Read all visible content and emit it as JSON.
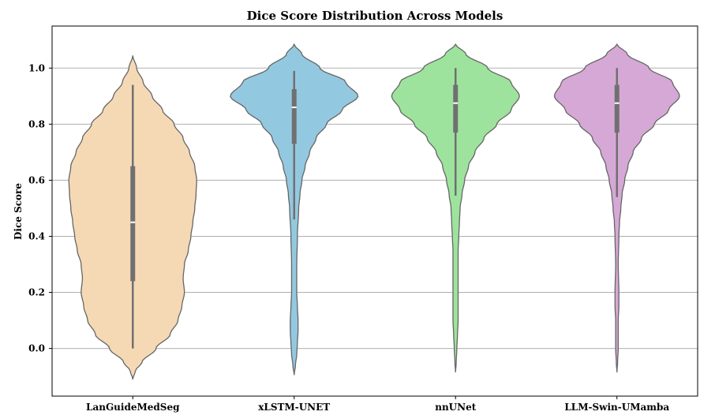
{
  "chart_data": {
    "type": "violin",
    "title": "Dice Score Distribution Across Models",
    "xlabel": "",
    "ylabel": "Dice Score",
    "ylim": [
      -0.17,
      1.15
    ],
    "yticks": [
      0.0,
      0.2,
      0.4,
      0.6,
      0.8,
      1.0
    ],
    "ytick_labels": [
      "0.0",
      "0.2",
      "0.4",
      "0.6",
      "0.8",
      "1.0"
    ],
    "grid": "horizontal",
    "categories": [
      "LanGuideMedSeg",
      "xLSTM-UNET",
      "nnUNet",
      "LLM-Swin-UMamba"
    ],
    "series": [
      {
        "color": "#f5d9b5",
        "median": 0.45,
        "q1": 0.24,
        "q3": 0.65,
        "whisker_low": 0.0,
        "whisker_high": 0.94,
        "range": [
          -0.11,
          1.045
        ],
        "density": [
          [
            -0.11,
            0.0
          ],
          [
            -0.08,
            0.04
          ],
          [
            -0.05,
            0.14
          ],
          [
            0.0,
            0.36
          ],
          [
            0.05,
            0.58
          ],
          [
            0.1,
            0.7
          ],
          [
            0.15,
            0.76
          ],
          [
            0.2,
            0.8
          ],
          [
            0.25,
            0.78
          ],
          [
            0.3,
            0.8
          ],
          [
            0.35,
            0.86
          ],
          [
            0.4,
            0.9
          ],
          [
            0.45,
            0.93
          ],
          [
            0.5,
            0.96
          ],
          [
            0.55,
            0.98
          ],
          [
            0.6,
            0.99
          ],
          [
            0.65,
            0.96
          ],
          [
            0.7,
            0.88
          ],
          [
            0.75,
            0.78
          ],
          [
            0.8,
            0.64
          ],
          [
            0.85,
            0.46
          ],
          [
            0.9,
            0.3
          ],
          [
            0.95,
            0.16
          ],
          [
            1.0,
            0.06
          ],
          [
            1.045,
            0.0
          ]
        ]
      },
      {
        "color": "#93c9e0",
        "median": 0.86,
        "q1": 0.73,
        "q3": 0.925,
        "whisker_low": 0.46,
        "whisker_high": 0.99,
        "range": [
          -0.095,
          1.085
        ],
        "density": [
          [
            -0.095,
            0.0
          ],
          [
            -0.06,
            0.02
          ],
          [
            -0.02,
            0.04
          ],
          [
            0.02,
            0.05
          ],
          [
            0.06,
            0.06
          ],
          [
            0.1,
            0.06
          ],
          [
            0.15,
            0.05
          ],
          [
            0.2,
            0.04
          ],
          [
            0.3,
            0.04
          ],
          [
            0.4,
            0.05
          ],
          [
            0.5,
            0.07
          ],
          [
            0.55,
            0.09
          ],
          [
            0.6,
            0.12
          ],
          [
            0.65,
            0.17
          ],
          [
            0.7,
            0.24
          ],
          [
            0.75,
            0.34
          ],
          [
            0.8,
            0.5
          ],
          [
            0.85,
            0.74
          ],
          [
            0.9,
            0.99
          ],
          [
            0.95,
            0.8
          ],
          [
            1.0,
            0.4
          ],
          [
            1.05,
            0.12
          ],
          [
            1.085,
            0.0
          ]
        ]
      },
      {
        "color": "#9de39d",
        "median": 0.875,
        "q1": 0.77,
        "q3": 0.94,
        "whisker_low": 0.545,
        "whisker_high": 1.0,
        "range": [
          -0.085,
          1.085
        ],
        "density": [
          [
            -0.085,
            0.0
          ],
          [
            -0.05,
            0.01
          ],
          [
            0.0,
            0.02
          ],
          [
            0.05,
            0.03
          ],
          [
            0.1,
            0.04
          ],
          [
            0.2,
            0.04
          ],
          [
            0.3,
            0.04
          ],
          [
            0.35,
            0.04
          ],
          [
            0.4,
            0.05
          ],
          [
            0.45,
            0.06
          ],
          [
            0.5,
            0.07
          ],
          [
            0.55,
            0.1
          ],
          [
            0.6,
            0.14
          ],
          [
            0.65,
            0.2
          ],
          [
            0.7,
            0.3
          ],
          [
            0.75,
            0.44
          ],
          [
            0.8,
            0.64
          ],
          [
            0.85,
            0.86
          ],
          [
            0.9,
            0.99
          ],
          [
            0.95,
            0.86
          ],
          [
            1.0,
            0.5
          ],
          [
            1.05,
            0.16
          ],
          [
            1.085,
            0.0
          ]
        ]
      },
      {
        "color": "#d6a8d6",
        "median": 0.875,
        "q1": 0.77,
        "q3": 0.94,
        "whisker_low": 0.54,
        "whisker_high": 1.0,
        "range": [
          -0.085,
          1.085
        ],
        "density": [
          [
            -0.085,
            0.0
          ],
          [
            -0.05,
            0.01
          ],
          [
            0.0,
            0.02
          ],
          [
            0.05,
            0.02
          ],
          [
            0.1,
            0.02
          ],
          [
            0.15,
            0.03
          ],
          [
            0.2,
            0.03
          ],
          [
            0.3,
            0.02
          ],
          [
            0.4,
            0.03
          ],
          [
            0.45,
            0.04
          ],
          [
            0.5,
            0.06
          ],
          [
            0.55,
            0.08
          ],
          [
            0.6,
            0.12
          ],
          [
            0.65,
            0.17
          ],
          [
            0.7,
            0.25
          ],
          [
            0.75,
            0.38
          ],
          [
            0.8,
            0.58
          ],
          [
            0.85,
            0.8
          ],
          [
            0.9,
            0.97
          ],
          [
            0.95,
            0.86
          ],
          [
            1.0,
            0.5
          ],
          [
            1.05,
            0.16
          ],
          [
            1.085,
            0.0
          ]
        ]
      }
    ]
  }
}
